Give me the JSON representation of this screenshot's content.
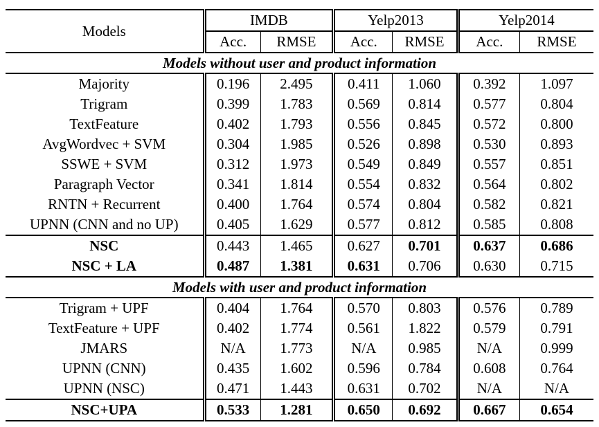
{
  "page": {
    "background": "#ffffff",
    "text_color": "#000000",
    "rule_color": "#000000"
  },
  "table": {
    "header": {
      "models_label": "Models",
      "groups": [
        {
          "label": "IMDB",
          "subcolumns": [
            "Acc.",
            "RMSE"
          ]
        },
        {
          "label": "Yelp2013",
          "subcolumns": [
            "Acc.",
            "RMSE"
          ]
        },
        {
          "label": "Yelp2014",
          "subcolumns": [
            "Acc.",
            "RMSE"
          ]
        }
      ]
    },
    "sections": [
      {
        "title": "Models without user and product information",
        "rows": [
          {
            "model": "Majority",
            "values": [
              "0.196",
              "2.495",
              "0.411",
              "1.060",
              "0.392",
              "1.097"
            ]
          },
          {
            "model": "Trigram",
            "values": [
              "0.399",
              "1.783",
              "0.569",
              "0.814",
              "0.577",
              "0.804"
            ]
          },
          {
            "model": "TextFeature",
            "values": [
              "0.402",
              "1.793",
              "0.556",
              "0.845",
              "0.572",
              "0.800"
            ]
          },
          {
            "model": "AvgWordvec + SVM",
            "values": [
              "0.304",
              "1.985",
              "0.526",
              "0.898",
              "0.530",
              "0.893"
            ]
          },
          {
            "model": "SSWE + SVM",
            "values": [
              "0.312",
              "1.973",
              "0.549",
              "0.849",
              "0.557",
              "0.851"
            ]
          },
          {
            "model": "Paragraph Vector",
            "values": [
              "0.341",
              "1.814",
              "0.554",
              "0.832",
              "0.564",
              "0.802"
            ]
          },
          {
            "model": "RNTN + Recurrent",
            "values": [
              "0.400",
              "1.764",
              "0.574",
              "0.804",
              "0.582",
              "0.821"
            ]
          },
          {
            "model": "UPNN (CNN and no UP)",
            "values": [
              "0.405",
              "1.629",
              "0.577",
              "0.812",
              "0.585",
              "0.808"
            ]
          },
          {
            "model": "NSC",
            "model_bold": true,
            "rule_above": true,
            "values": [
              "0.443",
              "1.465",
              "0.627",
              "0.701",
              "0.637",
              "0.686"
            ],
            "bold_values": [
              false,
              false,
              false,
              true,
              true,
              true
            ]
          },
          {
            "model": "NSC + LA",
            "model_bold": true,
            "values": [
              "0.487",
              "1.381",
              "0.631",
              "0.706",
              "0.630",
              "0.715"
            ],
            "bold_values": [
              true,
              true,
              true,
              false,
              false,
              false
            ]
          }
        ]
      },
      {
        "title": "Models with user and product information",
        "rows": [
          {
            "model": "Trigram + UPF",
            "values": [
              "0.404",
              "1.764",
              "0.570",
              "0.803",
              "0.576",
              "0.789"
            ]
          },
          {
            "model": "TextFeature + UPF",
            "values": [
              "0.402",
              "1.774",
              "0.561",
              "1.822",
              "0.579",
              "0.791"
            ]
          },
          {
            "model": "JMARS",
            "values": [
              "N/A",
              "1.773",
              "N/A",
              "0.985",
              "N/A",
              "0.999"
            ]
          },
          {
            "model": "UPNN (CNN)",
            "values": [
              "0.435",
              "1.602",
              "0.596",
              "0.784",
              "0.608",
              "0.764"
            ]
          },
          {
            "model": "UPNN (NSC)",
            "values": [
              "0.471",
              "1.443",
              "0.631",
              "0.702",
              "N/A",
              "N/A"
            ]
          },
          {
            "model": "NSC+UPA",
            "model_bold": true,
            "rule_above": true,
            "values": [
              "0.533",
              "1.281",
              "0.650",
              "0.692",
              "0.667",
              "0.654"
            ],
            "bold_values": [
              true,
              true,
              true,
              true,
              true,
              true
            ]
          }
        ]
      }
    ]
  }
}
